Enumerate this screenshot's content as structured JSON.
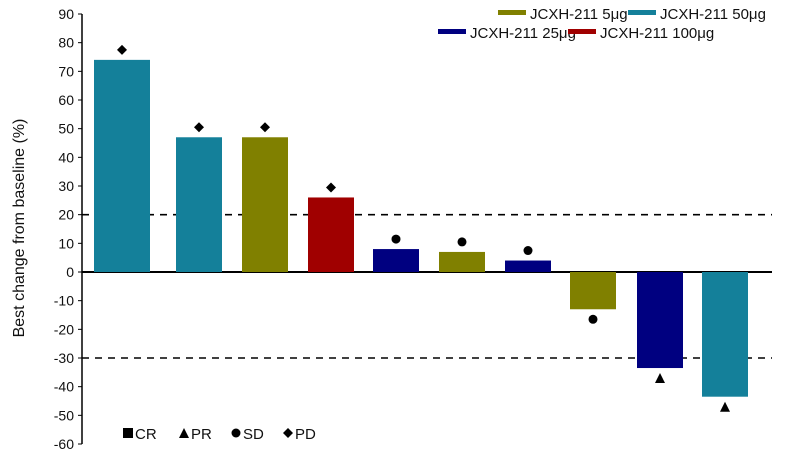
{
  "chart_data": {
    "type": "bar",
    "title": "",
    "xlabel": "",
    "ylabel": "Best change from baseline  (%)",
    "ylim": [
      -60,
      90
    ],
    "yticks": [
      90,
      80,
      70,
      60,
      50,
      40,
      30,
      20,
      10,
      0,
      -10,
      -20,
      -30,
      -40,
      -50,
      -60
    ],
    "grid": false,
    "reference_lines": [
      20,
      -30
    ],
    "series_legend": [
      {
        "name": "JCXH-211 5μg",
        "color": "#808000"
      },
      {
        "name": "JCXH-211 50μg",
        "color": "#14809a"
      },
      {
        "name": "JCXH-211 25μg",
        "color": "#000080"
      },
      {
        "name": "JCXH-211 100μg",
        "color": "#a00000"
      }
    ],
    "legend_placement": "top-right",
    "response_legend": [
      {
        "symbol": "square",
        "label": "CR"
      },
      {
        "symbol": "triangle",
        "label": "PR"
      },
      {
        "symbol": "circle",
        "label": "SD"
      },
      {
        "symbol": "diamond",
        "label": "PD"
      }
    ],
    "bars": [
      {
        "value": 74,
        "series": "JCXH-211 50μg",
        "response": "diamond"
      },
      {
        "value": 47,
        "series": "JCXH-211 50μg",
        "response": "diamond"
      },
      {
        "value": 47,
        "series": "JCXH-211 5μg",
        "response": "diamond"
      },
      {
        "value": 26,
        "series": "JCXH-211 100μg",
        "response": "diamond"
      },
      {
        "value": 8,
        "series": "JCXH-211 25μg",
        "response": "circle"
      },
      {
        "value": 7,
        "series": "JCXH-211 5μg",
        "response": "circle"
      },
      {
        "value": 4,
        "series": "JCXH-211 25μg",
        "response": "circle"
      },
      {
        "value": -13,
        "series": "JCXH-211 5μg",
        "response": "circle"
      },
      {
        "value": -33.5,
        "series": "JCXH-211 25μg",
        "response": "triangle"
      },
      {
        "value": -43.5,
        "series": "JCXH-211 50μg",
        "response": "triangle"
      }
    ]
  }
}
